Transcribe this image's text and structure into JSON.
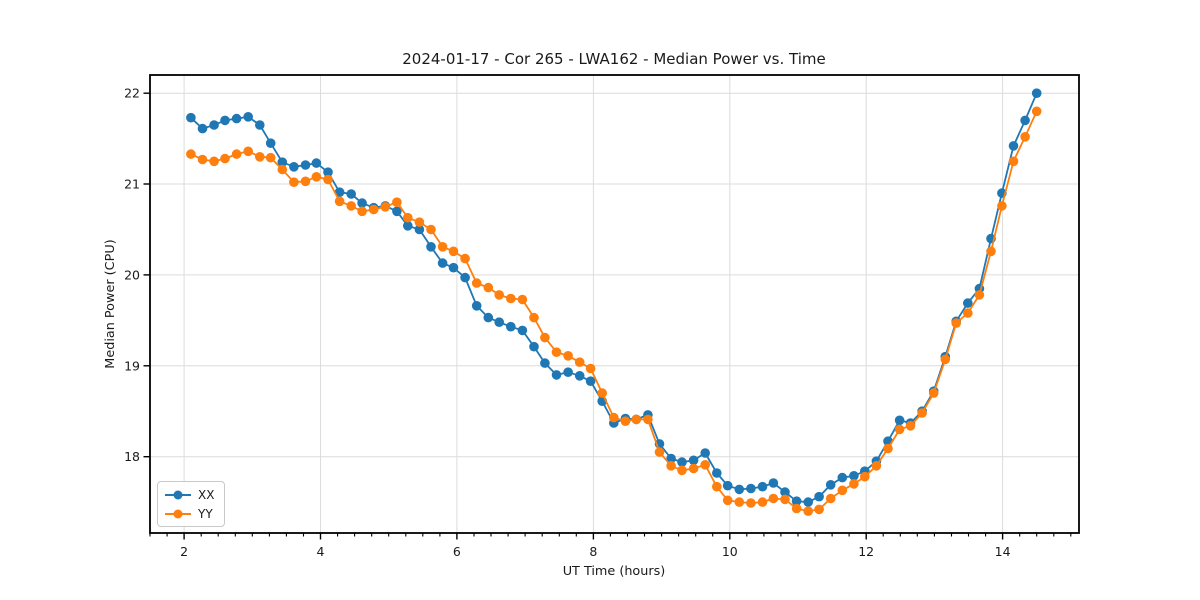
{
  "title": "2024-01-17 - Cor 265 - LWA162 - Median Power vs. Time",
  "colors": {
    "background": "#ffffff",
    "grid": "#dcdcdc",
    "spine": "#000000",
    "text": "#1a1a1a",
    "series_xx": "#1f77b4",
    "series_yy": "#ff7f0e"
  },
  "legend": {
    "position": "lower left",
    "entries": [
      {
        "label": "XX",
        "color": "#1f77b4"
      },
      {
        "label": "YY",
        "color": "#ff7f0e"
      }
    ]
  },
  "chart_data": {
    "type": "line",
    "title": "2024-01-17 - Cor 265 - LWA162 - Median Power vs. Time",
    "xlabel": "UT Time (hours)",
    "ylabel": "Median Power (CPU)",
    "xlim": [
      1.5,
      15.12
    ],
    "ylim": [
      17.16,
      22.2
    ],
    "x_major_ticks": [
      2,
      4,
      6,
      8,
      10,
      12,
      14
    ],
    "x_tick_labels": [
      "2",
      "4",
      "6",
      "8",
      "10",
      "12",
      "14"
    ],
    "x_minor_step": 0.25,
    "y_major_ticks": [
      18,
      19,
      20,
      21,
      22
    ],
    "y_tick_labels": [
      "18",
      "19",
      "20",
      "21",
      "22"
    ],
    "grid": true,
    "marker": "circle",
    "legend_position": "lower left",
    "x": [
      2.1,
      2.27,
      2.44,
      2.6,
      2.77,
      2.94,
      3.11,
      3.27,
      3.44,
      3.61,
      3.78,
      3.94,
      4.11,
      4.28,
      4.45,
      4.61,
      4.78,
      4.95,
      5.12,
      5.28,
      5.45,
      5.62,
      5.79,
      5.95,
      6.12,
      6.29,
      6.46,
      6.62,
      6.79,
      6.96,
      7.13,
      7.29,
      7.46,
      7.63,
      7.8,
      7.96,
      8.13,
      8.3,
      8.47,
      8.63,
      8.8,
      8.97,
      9.14,
      9.3,
      9.47,
      9.64,
      9.81,
      9.97,
      10.14,
      10.31,
      10.48,
      10.64,
      10.81,
      10.98,
      11.15,
      11.31,
      11.48,
      11.65,
      11.82,
      11.98,
      12.15,
      12.32,
      12.49,
      12.65,
      12.82,
      12.99,
      13.16,
      13.32,
      13.49,
      13.66,
      13.83,
      13.99,
      14.16,
      14.33,
      14.5
    ],
    "series": [
      {
        "name": "XX",
        "color": "#1f77b4",
        "values": [
          21.73,
          21.61,
          21.65,
          21.7,
          21.72,
          21.74,
          21.65,
          21.45,
          21.24,
          21.19,
          21.21,
          21.23,
          21.13,
          20.91,
          20.89,
          20.79,
          20.74,
          20.76,
          20.7,
          20.54,
          20.5,
          20.31,
          20.13,
          20.08,
          19.97,
          19.66,
          19.53,
          19.48,
          19.43,
          19.39,
          19.21,
          19.03,
          18.9,
          18.93,
          18.89,
          18.83,
          18.61,
          18.37,
          18.42,
          18.41,
          18.46,
          18.14,
          17.98,
          17.94,
          17.96,
          18.04,
          17.82,
          17.68,
          17.64,
          17.65,
          17.67,
          17.71,
          17.61,
          17.51,
          17.5,
          17.56,
          17.69,
          17.77,
          17.79,
          17.84,
          17.95,
          18.17,
          18.4,
          18.37,
          18.5,
          18.72,
          19.1,
          19.49,
          19.69,
          19.85,
          20.4,
          20.9,
          21.42,
          21.7,
          22.0
        ]
      },
      {
        "name": "YY",
        "color": "#ff7f0e",
        "values": [
          21.33,
          21.27,
          21.25,
          21.28,
          21.33,
          21.36,
          21.3,
          21.29,
          21.16,
          21.02,
          21.03,
          21.08,
          21.05,
          20.81,
          20.76,
          20.7,
          20.72,
          20.75,
          20.8,
          20.63,
          20.58,
          20.5,
          20.31,
          20.26,
          20.18,
          19.91,
          19.86,
          19.78,
          19.74,
          19.73,
          19.53,
          19.31,
          19.15,
          19.11,
          19.04,
          18.97,
          18.7,
          18.43,
          18.39,
          18.41,
          18.41,
          18.05,
          17.9,
          17.85,
          17.87,
          17.91,
          17.67,
          17.52,
          17.5,
          17.49,
          17.5,
          17.54,
          17.53,
          17.43,
          17.4,
          17.42,
          17.54,
          17.63,
          17.7,
          17.78,
          17.9,
          18.09,
          18.3,
          18.34,
          18.48,
          18.7,
          19.07,
          19.47,
          19.58,
          19.78,
          20.26,
          20.76,
          21.25,
          21.52,
          21.8
        ]
      }
    ]
  }
}
